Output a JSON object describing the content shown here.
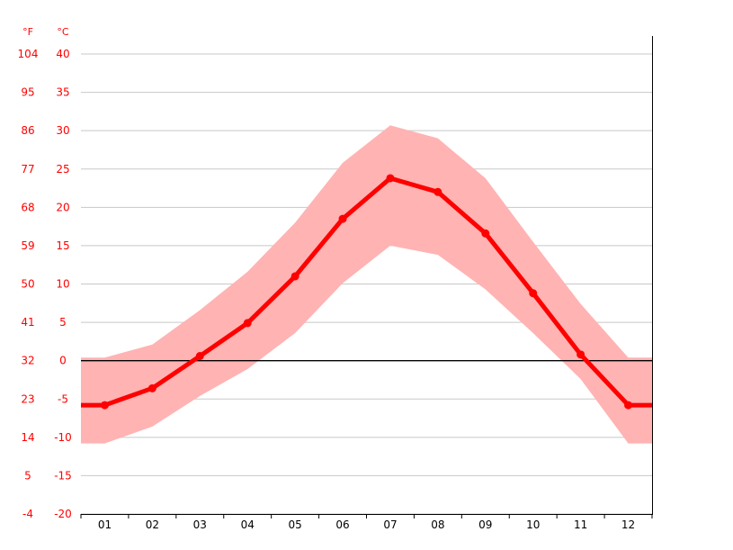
{
  "chart_data": {
    "type": "line",
    "title": "",
    "xlabel": "",
    "ylabel": "",
    "units": {
      "fahrenheit": "°F",
      "celsius": "°C"
    },
    "ylim": [
      -20,
      40
    ],
    "y_ticks_celsius": [
      "40",
      "35",
      "30",
      "25",
      "20",
      "15",
      "10",
      "5",
      "0",
      "-5",
      "-10",
      "-15",
      "-20"
    ],
    "y_ticks_fahrenheit": [
      "104",
      "95",
      "86",
      "77",
      "68",
      "59",
      "50",
      "41",
      "32",
      "23",
      "14",
      "5",
      "-4"
    ],
    "categories": [
      "01",
      "02",
      "03",
      "04",
      "05",
      "06",
      "07",
      "08",
      "09",
      "10",
      "11",
      "12"
    ],
    "series": [
      {
        "values": [
          -5.8,
          -3.6,
          0.6,
          4.9,
          11.0,
          18.5,
          23.8,
          22.0,
          16.6,
          8.8,
          0.8,
          -5.8
        ]
      }
    ],
    "band": {
      "min": [
        -10.8,
        -8.6,
        -4.6,
        -1.1,
        3.6,
        10.1,
        15.0,
        13.8,
        9.3,
        3.6,
        -2.4,
        -10.8
      ],
      "max": [
        0.4,
        2.1,
        6.6,
        11.6,
        18.0,
        25.8,
        30.7,
        29.0,
        23.8,
        15.5,
        7.4,
        0.4
      ]
    },
    "colors": {
      "line": "#ff0000",
      "band": "#ffb3b3",
      "grid": "#c8c8c8",
      "zero_line": "#000000",
      "tick_text": "#ff0000",
      "x_text": "#000000"
    },
    "grid": true,
    "legend": "none"
  }
}
